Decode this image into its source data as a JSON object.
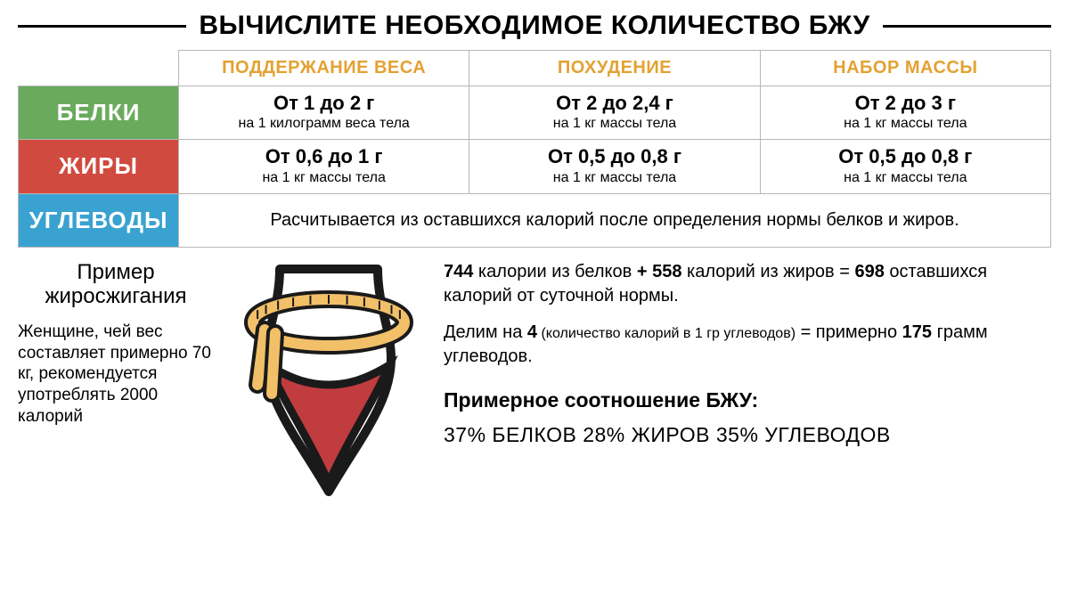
{
  "title": "ВЫЧИСЛИТЕ НЕОБХОДИМОЕ КОЛИЧЕСТВО БЖУ",
  "colors": {
    "goal_header": "#e3a233",
    "protein_bg": "#6aaa5d",
    "fat_bg": "#d14a3f",
    "carb_bg": "#3aa2d1",
    "border": "#b7b7b7",
    "tape": "#f2c069",
    "underwear": "#c13c3f",
    "skin": "#ffffff",
    "outline": "#1a1a1a"
  },
  "goals": [
    {
      "label": "ПОДДЕРЖАНИЕ ВЕСА"
    },
    {
      "label": "ПОХУДЕНИЕ"
    },
    {
      "label": "НАБОР МАССЫ"
    }
  ],
  "rows": {
    "protein": {
      "label": "БЕЛКИ",
      "cells": [
        {
          "main": "От 1 до 2 г",
          "sub": "на 1 килограмм веса тела"
        },
        {
          "main": "От 2 до 2,4 г",
          "sub": "на 1 кг массы тела"
        },
        {
          "main": "От 2 до 3 г",
          "sub": "на 1 кг массы тела"
        }
      ]
    },
    "fat": {
      "label": "ЖИРЫ",
      "cells": [
        {
          "main": "От 0,6 до 1 г",
          "sub": "на 1 кг массы тела"
        },
        {
          "main": "От 0,5 до 0,8 г",
          "sub": "на 1 кг массы тела"
        },
        {
          "main": "От 0,5 до 0,8 г",
          "sub": "на 1 кг массы тела"
        }
      ]
    },
    "carb": {
      "label": "УГЛЕВОДЫ",
      "note": "Расчитывается из оставшихся калорий после определения нормы белков и жиров."
    }
  },
  "example": {
    "title": "Пример жиросжигания",
    "body": "Женщине, чей вес составляет примерно 70 кг, рекомендуется употреблять 2000 калорий"
  },
  "calc": {
    "n_protein_cal": "744",
    "txt_protein": " калории из белков ",
    "plus": "+ ",
    "n_fat_cal": "558",
    "txt_fat": " калорий из жиров = ",
    "n_remain": "698",
    "txt_remain": " оставшихся калорий от суточной нормы.",
    "txt_divide_pre": "Делим на ",
    "n_divide": "4",
    "txt_divide_note": " (количество калорий в 1 гр углеводов)",
    "txt_approx": " = примерно ",
    "n_carbs_g": "175",
    "txt_carbs_g": " грамм углеводов.",
    "ratio_title": "Примерное соотношение БЖУ:",
    "ratio_body": "37% БЕЛКОВ 28% ЖИРОВ 35% УГЛЕВОДОВ"
  }
}
